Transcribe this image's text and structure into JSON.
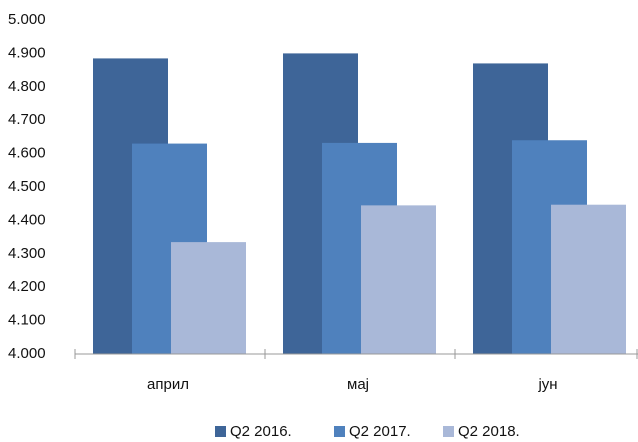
{
  "chart_data": {
    "type": "bar",
    "categories": [
      "април",
      "мај",
      "јун"
    ],
    "series": [
      {
        "name": "Q2 2016.",
        "color": "#3e6598",
        "values": [
          4885,
          4900,
          4870
        ]
      },
      {
        "name": "Q2 2017.",
        "color": "#4f81bd",
        "values": [
          4630,
          4632,
          4640
        ]
      },
      {
        "name": "Q2 2018.",
        "color": "#a9b8d8",
        "values": [
          4335,
          4445,
          4447
        ]
      }
    ],
    "ylim": [
      4000,
      5000
    ],
    "yticks": [
      {
        "value": 4000,
        "label": "4.000"
      },
      {
        "value": 4100,
        "label": "4.100"
      },
      {
        "value": 4200,
        "label": "4.200"
      },
      {
        "value": 4300,
        "label": "4.300"
      },
      {
        "value": 4400,
        "label": "4.400"
      },
      {
        "value": 4500,
        "label": "4.500"
      },
      {
        "value": 4600,
        "label": "4.600"
      },
      {
        "value": 4700,
        "label": "4.700"
      },
      {
        "value": 4800,
        "label": "4.800"
      },
      {
        "value": 4900,
        "label": "4.900"
      },
      {
        "value": 5000,
        "label": "5.000"
      }
    ],
    "grid": false,
    "legend": "bottom"
  }
}
